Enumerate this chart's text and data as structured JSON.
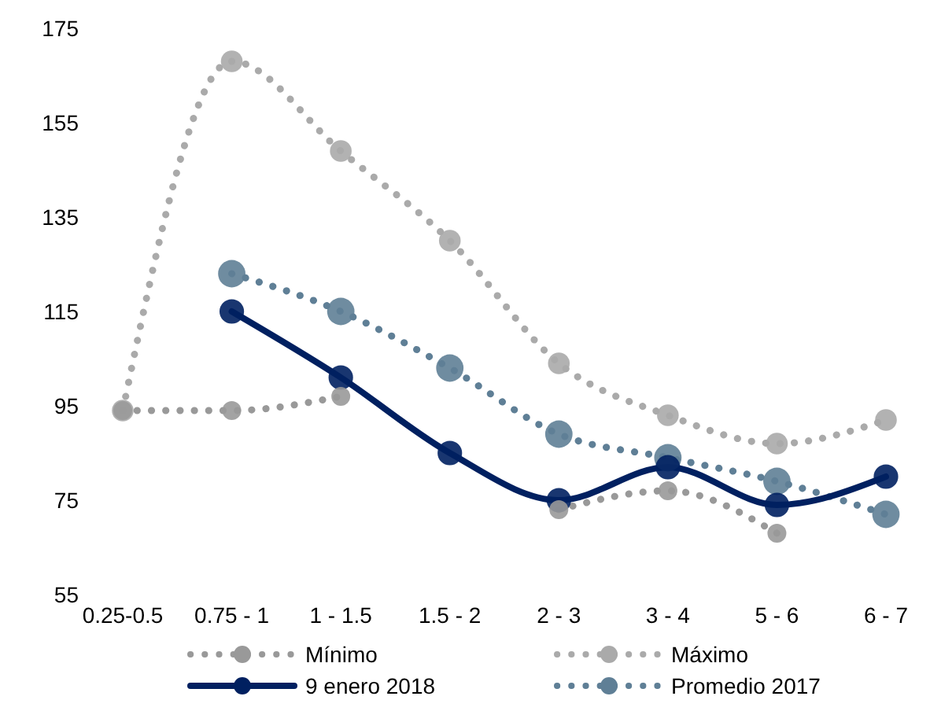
{
  "chart_data": {
    "type": "line",
    "categories": [
      "0.25-0.5",
      "0.75 - 1",
      "1 - 1.5",
      "1.5 - 2",
      "2 - 3",
      "3 - 4",
      "5 - 6",
      "6 - 7"
    ],
    "series": [
      {
        "name": "Mínimo",
        "color": "#999999",
        "line_style": "dotted",
        "values": [
          94,
          94,
          97,
          null,
          73,
          77,
          68,
          null
        ]
      },
      {
        "name": "Máximo",
        "color": "#aaaaaa",
        "line_style": "dotted",
        "values": [
          94,
          168,
          149,
          130,
          104,
          93,
          87,
          92
        ]
      },
      {
        "name": "9 enero 2018",
        "color": "#002060",
        "line_style": "solid",
        "values": [
          null,
          115,
          101,
          85,
          75,
          82,
          74,
          80
        ]
      },
      {
        "name": "Promedio 2017",
        "color": "#5f7f96",
        "line_style": "dotted",
        "values": [
          null,
          123,
          115,
          103,
          89,
          84,
          79,
          72
        ]
      }
    ],
    "ylim": [
      55,
      175
    ],
    "yticks": [
      55,
      75,
      95,
      115,
      135,
      155,
      175
    ],
    "grid": false,
    "legend": "bottom",
    "marker": "circle"
  }
}
